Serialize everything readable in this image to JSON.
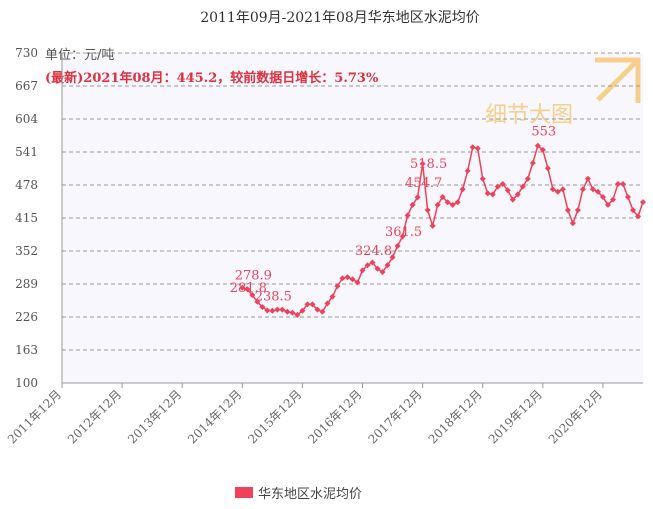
{
  "chart_data": {
    "type": "line",
    "title": "2011年09月-2021年08月华东地区水泥均价",
    "unit_label": "单位：元/吨",
    "annotation": "(最新)2021年08月：445.2，较前数据日增长：5.73%",
    "watermark": "细节大图",
    "categories": [
      "2011年12月",
      null,
      null,
      null,
      null,
      null,
      null,
      null,
      null,
      null,
      null,
      null,
      "2012年12月",
      null,
      null,
      null,
      null,
      null,
      null,
      null,
      null,
      null,
      null,
      null,
      "2013年12月",
      null,
      null,
      null,
      null,
      null,
      null,
      null,
      null,
      null,
      null,
      null,
      "2014年12月",
      null,
      null,
      null,
      null,
      null,
      null,
      null,
      null,
      null,
      null,
      null,
      "2015年12月",
      null,
      null,
      null,
      null,
      null,
      null,
      null,
      null,
      null,
      null,
      null,
      "2016年12月",
      null,
      null,
      null,
      null,
      null,
      null,
      null,
      null,
      null,
      null,
      null,
      "2017年12月",
      null,
      null,
      null,
      null,
      null,
      null,
      null,
      null,
      null,
      null,
      null,
      "2018年12月",
      null,
      null,
      null,
      null,
      null,
      null,
      null,
      null,
      null,
      null,
      null,
      "2019年12月",
      null,
      null,
      null,
      null,
      null,
      null,
      null,
      null,
      null,
      null,
      null,
      "2020年12月",
      null,
      null,
      null,
      null,
      null,
      null,
      null,
      null
    ],
    "series": [
      {
        "name": "华东地区水泥均价",
        "color": "#f0415a",
        "values": [
          null,
          null,
          null,
          null,
          null,
          null,
          null,
          null,
          null,
          null,
          null,
          null,
          null,
          null,
          null,
          null,
          null,
          null,
          null,
          null,
          null,
          null,
          null,
          null,
          null,
          null,
          null,
          null,
          null,
          null,
          null,
          null,
          null,
          null,
          null,
          null,
          281.8,
          278.9,
          268,
          255,
          245,
          238.5,
          238,
          240,
          240,
          236,
          234,
          230,
          238,
          250,
          250,
          240,
          236,
          252,
          265,
          285,
          300,
          302,
          298,
          292,
          315,
          324.8,
          330,
          318,
          312,
          325,
          340,
          361.5,
          380,
          420,
          440,
          454.7,
          518.5,
          430,
          400,
          440,
          455,
          445,
          440,
          445,
          470,
          505,
          550,
          548,
          490,
          462,
          460,
          475,
          480,
          468,
          450,
          460,
          475,
          490,
          520,
          553,
          545,
          510,
          470,
          465,
          470,
          430,
          405,
          430,
          470,
          490,
          470,
          465,
          455,
          440,
          450,
          480,
          480,
          455,
          430,
          418,
          445.2
        ],
        "value_labels": [
          null,
          null,
          null,
          null,
          null,
          null,
          null,
          null,
          null,
          null,
          null,
          null,
          null,
          null,
          null,
          null,
          null,
          null,
          null,
          null,
          null,
          null,
          null,
          null,
          null,
          null,
          null,
          null,
          null,
          null,
          null,
          null,
          null,
          null,
          null,
          null,
          "281.8",
          "278.9",
          null,
          null,
          null,
          "238.5",
          null,
          null,
          null,
          null,
          null,
          null,
          null,
          null,
          null,
          null,
          null,
          null,
          null,
          null,
          null,
          null,
          null,
          null,
          null,
          "324.8",
          null,
          null,
          null,
          null,
          null,
          "361.5",
          null,
          null,
          null,
          "454.7",
          "518.5",
          null,
          null,
          null,
          null,
          null,
          null,
          null,
          null,
          null,
          null,
          null,
          null,
          null,
          null,
          null,
          null,
          null,
          null,
          null,
          null,
          null,
          null,
          "553",
          null,
          null,
          null,
          null,
          null,
          null,
          null,
          null,
          null,
          null,
          null,
          null,
          null,
          null,
          null,
          null,
          null,
          null,
          null,
          null,
          null
        ]
      }
    ],
    "ylim": [
      100,
      730
    ],
    "yticks": [
      100,
      163,
      226,
      289,
      352,
      415,
      478,
      541,
      604,
      667,
      730
    ],
    "grid": true,
    "legend": "bottom"
  }
}
